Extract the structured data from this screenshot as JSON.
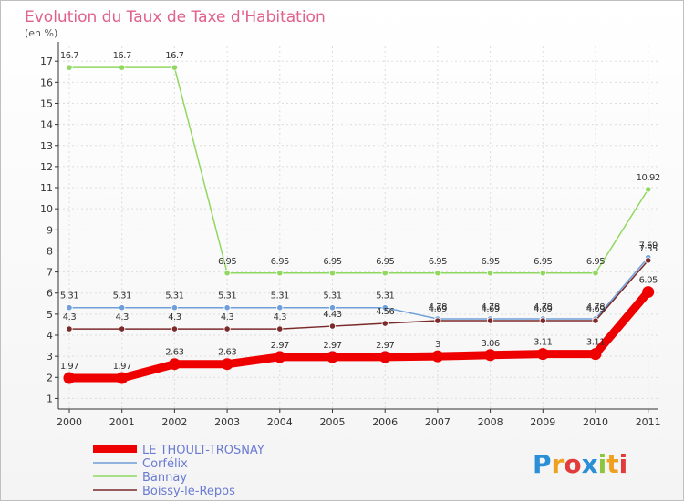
{
  "chart_data": {
    "type": "line",
    "title": "Evolution du Taux de Taxe d'Habitation",
    "ylabel": "(en %)",
    "xlabel": "",
    "x": [
      "2000",
      "2001",
      "2002",
      "2003",
      "2004",
      "2005",
      "2006",
      "2007",
      "2008",
      "2009",
      "2010",
      "2011"
    ],
    "ylim": [
      0.5,
      17.7
    ],
    "yticks": [
      "1",
      "2",
      "3",
      "4",
      "5",
      "6",
      "7",
      "8",
      "9",
      "10",
      "11",
      "12",
      "13",
      "14",
      "15",
      "16",
      "17"
    ],
    "legend_position": "bottom-left",
    "series": [
      {
        "name": "LE THOULT-TROSNAY",
        "color": "#ee0000",
        "values": [
          1.97,
          1.97,
          2.63,
          2.63,
          2.97,
          2.97,
          2.97,
          3,
          3.06,
          3.11,
          3.11,
          6.05
        ],
        "labels": [
          "1.97",
          "1.97",
          "2.63",
          "2.63",
          "2.97",
          "2.97",
          "2.97",
          "3",
          "3.06",
          "3.11",
          "3.11",
          "6.05"
        ]
      },
      {
        "name": "Corfélix",
        "color": "#6f9fd8",
        "values": [
          5.31,
          5.31,
          5.31,
          5.31,
          5.31,
          5.31,
          5.31,
          4.78,
          4.78,
          4.78,
          4.78,
          7.69
        ],
        "labels": [
          "5.31",
          "5.31",
          "5.31",
          "5.31",
          "5.31",
          "5.31",
          "5.31",
          "4.78",
          "4.78",
          "4.78",
          "4.78",
          "7.69"
        ]
      },
      {
        "name": "Bannay",
        "color": "#90d860",
        "values": [
          16.7,
          16.7,
          16.7,
          6.95,
          6.95,
          6.95,
          6.95,
          6.95,
          6.95,
          6.95,
          6.95,
          10.92
        ],
        "labels": [
          "16.7",
          "16.7",
          "16.7",
          "6.95",
          "6.95",
          "6.95",
          "6.95",
          "6.95",
          "6.95",
          "6.95",
          "6.95",
          "10.92"
        ]
      },
      {
        "name": "Boissy-le-Repos",
        "color": "#7a2a2a",
        "values": [
          4.3,
          4.3,
          4.3,
          4.3,
          4.3,
          4.43,
          4.56,
          4.69,
          4.69,
          4.69,
          4.69,
          7.55
        ],
        "labels": [
          "4.3",
          "4.3",
          "4.3",
          "4.3",
          "4.3",
          "4.43",
          "4.56",
          "4.69",
          "4.69",
          "4.69",
          "4.69",
          "7.55"
        ]
      }
    ]
  },
  "logo": {
    "letters": [
      {
        "ch": "P",
        "color": "#2a8fd6"
      },
      {
        "ch": "r",
        "color": "#f0a020"
      },
      {
        "ch": "o",
        "color": "#e23b3b"
      },
      {
        "ch": "x",
        "color": "#2a8fd6"
      },
      {
        "ch": "i",
        "color": "#8cc63e"
      },
      {
        "ch": "t",
        "color": "#f0a020"
      },
      {
        "ch": "i",
        "color": "#e23b3b"
      }
    ]
  }
}
